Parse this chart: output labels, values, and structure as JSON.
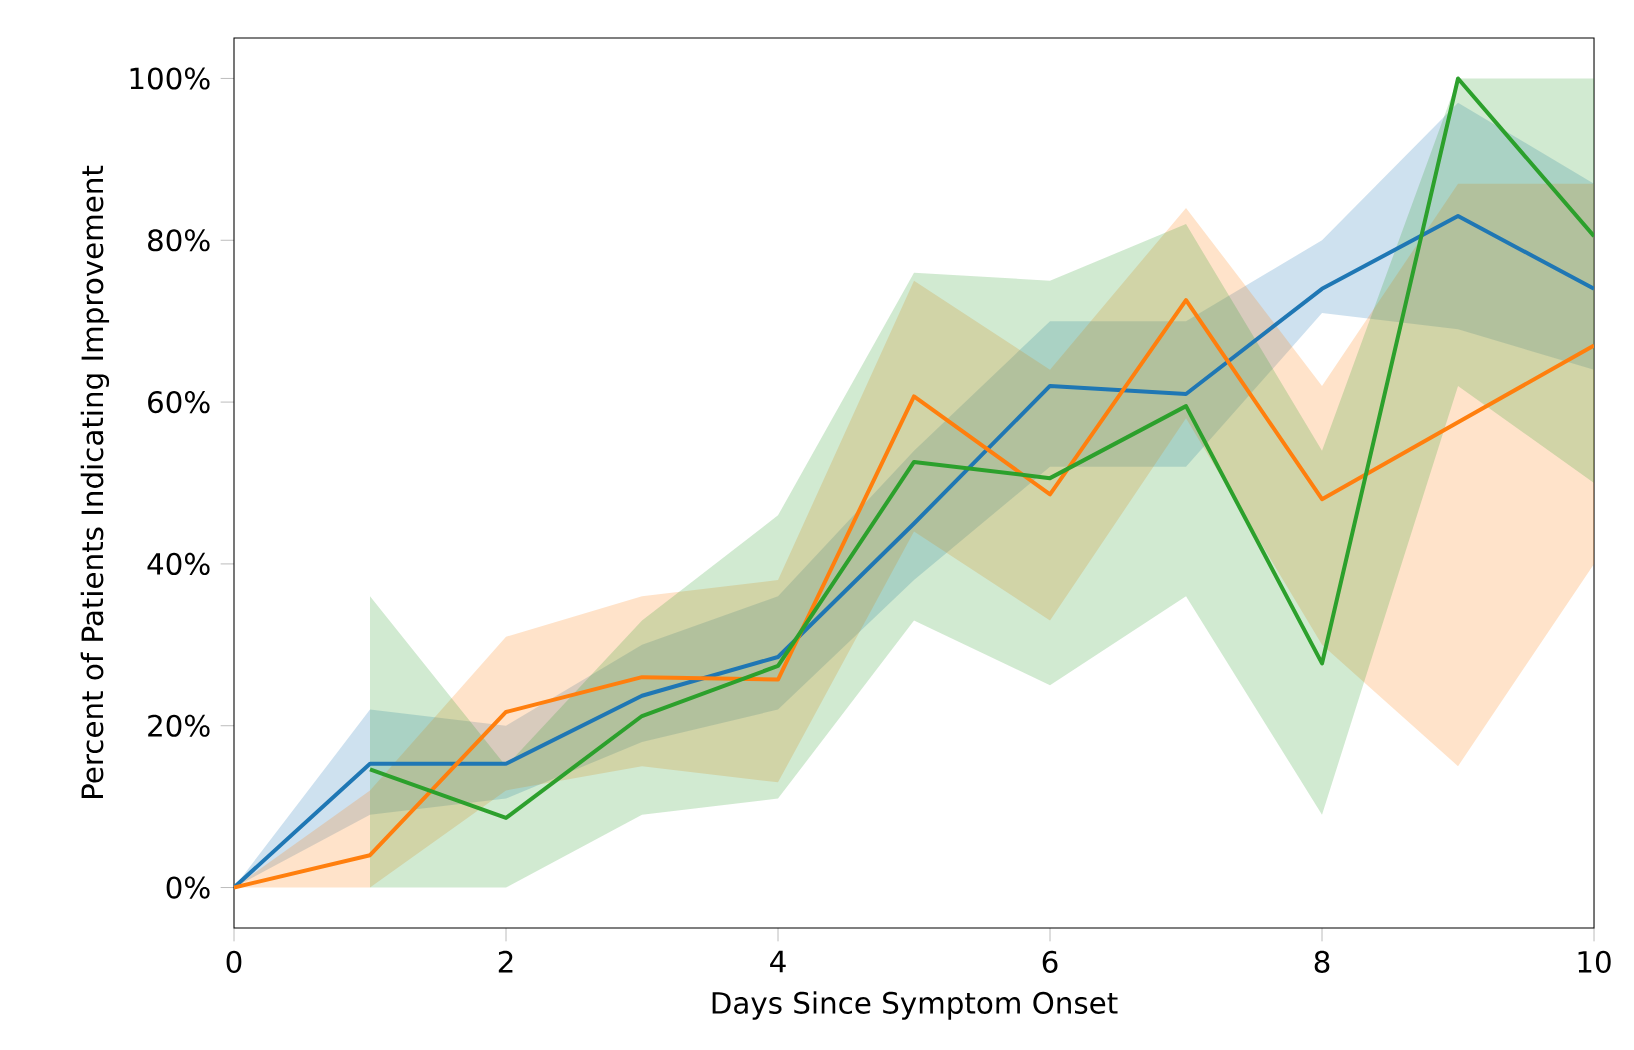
{
  "chart_data": {
    "type": "line",
    "xlabel": "Days Since Symptom Onset",
    "ylabel": "Percent of Patients Indicating Improvement",
    "x": [
      0,
      1,
      2,
      3,
      4,
      5,
      6,
      7,
      8,
      9,
      10
    ],
    "series": [
      {
        "color": "#1f77b4",
        "values": [
          0,
          15.3,
          15.3,
          23.7,
          28.5,
          45,
          62,
          61,
          74,
          83,
          74
        ],
        "lower": [
          0,
          9,
          11,
          18,
          22,
          38,
          52,
          52,
          71,
          69,
          64
        ],
        "upper": [
          0,
          22,
          20,
          30,
          36,
          54,
          70,
          70,
          80,
          97,
          87
        ]
      },
      {
        "color": "#ff7f0e",
        "values": [
          0,
          4,
          21.7,
          26,
          25.7,
          60.7,
          48.6,
          72.6,
          48,
          57.5,
          67
        ],
        "lower": [
          0,
          0,
          12,
          15,
          13,
          44,
          33,
          58,
          30,
          15,
          40
        ],
        "upper": [
          0,
          12,
          31,
          36,
          38,
          75,
          64,
          84,
          62,
          87,
          87
        ]
      },
      {
        "color": "#2ca02c",
        "values": [
          null,
          14.6,
          8.6,
          21.2,
          27.4,
          52.6,
          50.6,
          59.5,
          27.7,
          100,
          80.5
        ],
        "lower": [
          null,
          0,
          0,
          9,
          11,
          33,
          25,
          36,
          9,
          62,
          50
        ],
        "upper": [
          null,
          36,
          15,
          33,
          46,
          76,
          75,
          82,
          54,
          100,
          100
        ]
      }
    ],
    "xlim": [
      0,
      10
    ],
    "ylim": [
      -5,
      105
    ],
    "xticks": [
      0,
      2,
      4,
      6,
      8,
      10
    ],
    "yticks": [
      {
        "value": 0,
        "label": "0%"
      },
      {
        "value": 20,
        "label": "20%"
      },
      {
        "value": 40,
        "label": "40%"
      },
      {
        "value": 60,
        "label": "60%"
      },
      {
        "value": 80,
        "label": "80%"
      },
      {
        "value": 100,
        "label": "100%"
      }
    ],
    "grid": false,
    "marker": "none",
    "line_style": "solid"
  }
}
